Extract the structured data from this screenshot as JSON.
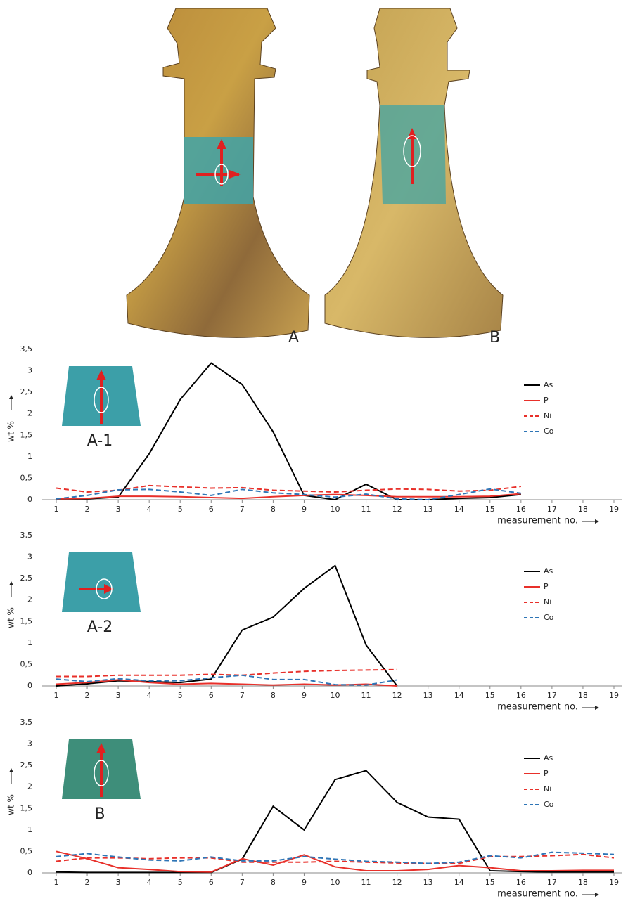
{
  "figure": {
    "labels": [
      "A",
      "B"
    ]
  },
  "chart_data": [
    {
      "type": "line",
      "inset_label": "A-1",
      "ylabel": "wt %",
      "xlabel": "measurement no.",
      "x": [
        1,
        2,
        3,
        4,
        5,
        6,
        7,
        8,
        9,
        10,
        11,
        12,
        13,
        14,
        15,
        16
      ],
      "xlim": [
        1,
        19
      ],
      "xticks": [
        1,
        2,
        3,
        4,
        5,
        6,
        7,
        8,
        9,
        10,
        11,
        12,
        13,
        14,
        15,
        16,
        17,
        18,
        19
      ],
      "ylim": [
        0,
        3.5
      ],
      "yticks": [
        0,
        {
          "value": 0.5,
          "label": "0,5"
        },
        1,
        {
          "value": 1.5,
          "label": "1,5"
        },
        2,
        {
          "value": 2.5,
          "label": "2,5"
        },
        3,
        {
          "value": 3.5,
          "label": "3,5"
        }
      ],
      "series": [
        {
          "name": "As",
          "color": "#000000",
          "dashed": false,
          "values": [
            0.02,
            0.02,
            0.06,
            1.07,
            2.33,
            3.18,
            2.68,
            1.58,
            0.1,
            0.0,
            0.36,
            0.0,
            0.0,
            0.03,
            0.05,
            0.12
          ]
        },
        {
          "name": "P",
          "color": "#e8302a",
          "dashed": false,
          "values": [
            0.02,
            0.03,
            0.08,
            0.08,
            0.07,
            0.05,
            0.03,
            0.07,
            0.1,
            0.12,
            0.1,
            0.07,
            0.07,
            0.07,
            0.08,
            0.14
          ]
        },
        {
          "name": "Ni",
          "color": "#e8302a",
          "dashed": true,
          "values": [
            0.27,
            0.18,
            0.22,
            0.33,
            0.3,
            0.27,
            0.28,
            0.22,
            0.2,
            0.18,
            0.22,
            0.25,
            0.24,
            0.2,
            0.22,
            0.31
          ]
        },
        {
          "name": "Co",
          "color": "#2e75b6",
          "dashed": true,
          "values": [
            0.02,
            0.1,
            0.23,
            0.24,
            0.18,
            0.1,
            0.24,
            0.16,
            0.12,
            0.06,
            0.13,
            0.02,
            0.0,
            0.12,
            0.25,
            0.15
          ]
        }
      ]
    },
    {
      "type": "line",
      "inset_label": "A-2",
      "ylabel": "wt %",
      "xlabel": "measurement no.",
      "x": [
        1,
        2,
        3,
        4,
        5,
        6,
        7,
        8,
        9,
        10,
        11,
        12
      ],
      "xlim": [
        1,
        19
      ],
      "xticks": [
        1,
        2,
        3,
        4,
        5,
        6,
        7,
        8,
        9,
        10,
        11,
        12,
        13,
        14,
        15,
        16,
        17,
        18,
        19
      ],
      "ylim": [
        0,
        3.5
      ],
      "yticks": [
        0,
        {
          "value": 0.5,
          "label": "0,5"
        },
        1,
        {
          "value": 1.5,
          "label": "1,5"
        },
        2,
        {
          "value": 2.5,
          "label": "2,5"
        },
        3,
        {
          "value": 3.5,
          "label": "3,5"
        }
      ],
      "series": [
        {
          "name": "As",
          "color": "#000000",
          "dashed": false,
          "values": [
            0.0,
            0.05,
            0.12,
            0.1,
            0.08,
            0.16,
            1.3,
            1.6,
            2.27,
            2.8,
            0.95,
            0.0
          ]
        },
        {
          "name": "P",
          "color": "#e8302a",
          "dashed": false,
          "values": [
            0.04,
            0.08,
            0.14,
            0.08,
            0.04,
            0.06,
            0.04,
            0.02,
            0.04,
            0.02,
            0.04,
            0.0
          ]
        },
        {
          "name": "Ni",
          "color": "#e8302a",
          "dashed": true,
          "values": [
            0.22,
            0.22,
            0.25,
            0.25,
            0.25,
            0.27,
            0.25,
            0.3,
            0.34,
            0.36,
            0.37,
            0.38
          ]
        },
        {
          "name": "Co",
          "color": "#2e75b6",
          "dashed": true,
          "values": [
            0.16,
            0.1,
            0.17,
            0.12,
            0.12,
            0.19,
            0.25,
            0.15,
            0.15,
            0.03,
            0.02,
            0.14
          ]
        }
      ]
    },
    {
      "type": "line",
      "inset_label": "B",
      "ylabel": "wt %",
      "xlabel": "measurement no.",
      "x": [
        1,
        2,
        3,
        4,
        5,
        6,
        7,
        8,
        9,
        10,
        11,
        12,
        13,
        14,
        15,
        16,
        17,
        18,
        19
      ],
      "xlim": [
        1,
        19
      ],
      "xticks": [
        1,
        2,
        3,
        4,
        5,
        6,
        7,
        8,
        9,
        10,
        11,
        12,
        13,
        14,
        15,
        16,
        17,
        18,
        19
      ],
      "ylim": [
        0,
        3.5
      ],
      "yticks": [
        0,
        {
          "value": 0.5,
          "label": "0,5"
        },
        1,
        {
          "value": 1.5,
          "label": "1,5"
        },
        2,
        {
          "value": 2.5,
          "label": "2,5"
        },
        3,
        {
          "value": 3.5,
          "label": "3,5"
        }
      ],
      "series": [
        {
          "name": "As",
          "color": "#000000",
          "dashed": false,
          "values": [
            0.02,
            0.01,
            0.01,
            0.01,
            0.01,
            0.01,
            0.32,
            1.55,
            1.0,
            2.17,
            2.38,
            1.64,
            1.3,
            1.25,
            0.05,
            0.03,
            0.02,
            0.02,
            0.02
          ]
        },
        {
          "name": "P",
          "color": "#e8302a",
          "dashed": false,
          "values": [
            0.5,
            0.33,
            0.12,
            0.08,
            0.03,
            0.02,
            0.33,
            0.18,
            0.42,
            0.14,
            0.05,
            0.05,
            0.08,
            0.17,
            0.12,
            0.05,
            0.05,
            0.06,
            0.06
          ]
        },
        {
          "name": "Ni",
          "color": "#e8302a",
          "dashed": true,
          "values": [
            0.27,
            0.35,
            0.35,
            0.33,
            0.35,
            0.35,
            0.25,
            0.25,
            0.25,
            0.27,
            0.25,
            0.23,
            0.22,
            0.22,
            0.38,
            0.38,
            0.4,
            0.43,
            0.35
          ]
        },
        {
          "name": "Co",
          "color": "#2e75b6",
          "dashed": true,
          "values": [
            0.38,
            0.45,
            0.37,
            0.3,
            0.28,
            0.37,
            0.28,
            0.28,
            0.38,
            0.32,
            0.27,
            0.25,
            0.22,
            0.25,
            0.4,
            0.35,
            0.48,
            0.46,
            0.43
          ]
        }
      ]
    }
  ]
}
